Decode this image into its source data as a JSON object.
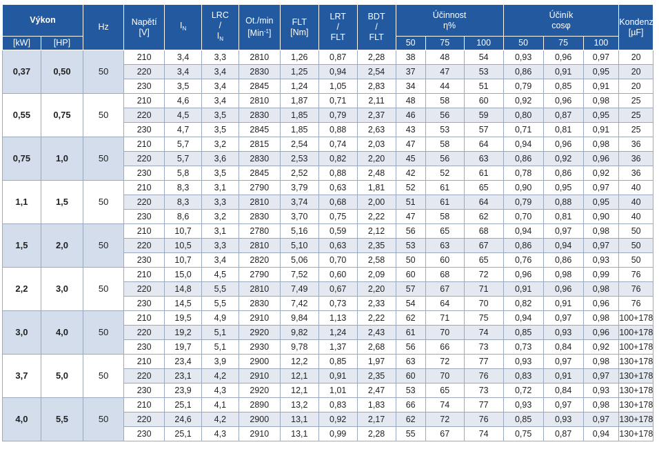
{
  "header": {
    "power": "Výkon",
    "kw": "[kW]",
    "hp": "[HP]",
    "hz": "Hz",
    "voltage": "Napětí",
    "voltage_unit": "[V]",
    "in_main": "I",
    "in_sub": "N",
    "lrc_top": "LRC",
    "lrc_slash": "/",
    "lrc_bot_main": "I",
    "lrc_bot_sub": "N",
    "rpm": "Ot./min",
    "rpm_unit_pre": "[Min",
    "rpm_unit_sup": "-1",
    "rpm_unit_post": "]",
    "flt": "FLT",
    "flt_unit": "[Nm]",
    "lrt_top": "LRT",
    "lrt_slash": "/",
    "lrt_bot": "FLT",
    "bdt_top": "BDT",
    "bdt_slash": "/",
    "bdt_bot": "FLT",
    "eff": "Účinnost",
    "eff_unit": "η%",
    "pf": "Účiník",
    "pf_unit": "cosφ",
    "cap": "Kondenzátor",
    "cap_unit": "[µF]",
    "load_50": "50",
    "load_75": "75",
    "load_100": "100"
  },
  "groups": [
    {
      "kw": "0,37",
      "hp": "0,50",
      "hz": "50",
      "rows": [
        [
          "210",
          "3,4",
          "3,3",
          "2810",
          "1,26",
          "0,87",
          "2,28",
          "38",
          "48",
          "54",
          "0,93",
          "0,96",
          "0,97",
          "20"
        ],
        [
          "220",
          "3,4",
          "3,4",
          "2830",
          "1,25",
          "0,94",
          "2,54",
          "37",
          "47",
          "53",
          "0,86",
          "0,91",
          "0,95",
          "20"
        ],
        [
          "230",
          "3,5",
          "3,4",
          "2845",
          "1,24",
          "1,05",
          "2,83",
          "34",
          "44",
          "51",
          "0,79",
          "0,85",
          "0,91",
          "20"
        ]
      ]
    },
    {
      "kw": "0,55",
      "hp": "0,75",
      "hz": "50",
      "rows": [
        [
          "210",
          "4,6",
          "3,4",
          "2810",
          "1,87",
          "0,71",
          "2,11",
          "48",
          "58",
          "60",
          "0,92",
          "0,96",
          "0,98",
          "25"
        ],
        [
          "220",
          "4,5",
          "3,5",
          "2830",
          "1,85",
          "0,79",
          "2,37",
          "46",
          "56",
          "59",
          "0,80",
          "0,87",
          "0,95",
          "25"
        ],
        [
          "230",
          "4,7",
          "3,5",
          "2845",
          "1,85",
          "0,88",
          "2,63",
          "43",
          "53",
          "57",
          "0,71",
          "0,81",
          "0,91",
          "25"
        ]
      ]
    },
    {
      "kw": "0,75",
      "hp": "1,0",
      "hz": "50",
      "rows": [
        [
          "210",
          "5,7",
          "3,2",
          "2815",
          "2,54",
          "0,74",
          "2,03",
          "47",
          "58",
          "64",
          "0,94",
          "0,96",
          "0,98",
          "36"
        ],
        [
          "220",
          "5,7",
          "3,6",
          "2830",
          "2,53",
          "0,82",
          "2,20",
          "45",
          "56",
          "63",
          "0,86",
          "0,92",
          "0,96",
          "36"
        ],
        [
          "230",
          "5,8",
          "3,5",
          "2845",
          "2,52",
          "0,88",
          "2,48",
          "42",
          "52",
          "61",
          "0,78",
          "0,86",
          "0,92",
          "36"
        ]
      ]
    },
    {
      "kw": "1,1",
      "hp": "1,5",
      "hz": "50",
      "rows": [
        [
          "210",
          "8,3",
          "3,1",
          "2790",
          "3,79",
          "0,63",
          "1,81",
          "52",
          "61",
          "65",
          "0,90",
          "0,95",
          "0,97",
          "40"
        ],
        [
          "220",
          "8,3",
          "3,3",
          "2810",
          "3,74",
          "0,68",
          "2,00",
          "51",
          "61",
          "64",
          "0,79",
          "0,88",
          "0,95",
          "40"
        ],
        [
          "230",
          "8,6",
          "3,2",
          "2830",
          "3,70",
          "0,75",
          "2,22",
          "47",
          "58",
          "62",
          "0,70",
          "0,81",
          "0,90",
          "40"
        ]
      ]
    },
    {
      "kw": "1,5",
      "hp": "2,0",
      "hz": "50",
      "rows": [
        [
          "210",
          "10,7",
          "3,1",
          "2780",
          "5,16",
          "0,59",
          "2,12",
          "56",
          "65",
          "68",
          "0,94",
          "0,97",
          "0,98",
          "50"
        ],
        [
          "220",
          "10,5",
          "3,3",
          "2810",
          "5,10",
          "0,63",
          "2,35",
          "53",
          "63",
          "67",
          "0,86",
          "0,94",
          "0,97",
          "50"
        ],
        [
          "230",
          "10,7",
          "3,4",
          "2820",
          "5,06",
          "0,70",
          "2,58",
          "50",
          "60",
          "65",
          "0,76",
          "0,86",
          "0,93",
          "50"
        ]
      ]
    },
    {
      "kw": "2,2",
      "hp": "3,0",
      "hz": "50",
      "rows": [
        [
          "210",
          "15,0",
          "4,5",
          "2790",
          "7,52",
          "0,60",
          "2,09",
          "60",
          "68",
          "72",
          "0,96",
          "0,98",
          "0,99",
          "76"
        ],
        [
          "220",
          "14,8",
          "5,5",
          "2810",
          "7,49",
          "0,67",
          "2,20",
          "57",
          "67",
          "71",
          "0,91",
          "0,96",
          "0,98",
          "76"
        ],
        [
          "230",
          "14,5",
          "5,5",
          "2830",
          "7,42",
          "0,73",
          "2,33",
          "54",
          "64",
          "70",
          "0,82",
          "0,91",
          "0,96",
          "76"
        ]
      ]
    },
    {
      "kw": "3,0",
      "hp": "4,0",
      "hz": "50",
      "rows": [
        [
          "210",
          "19,5",
          "4,9",
          "2910",
          "9,84",
          "1,13",
          "2,22",
          "62",
          "71",
          "75",
          "0,94",
          "0,97",
          "0,98",
          "100+178"
        ],
        [
          "220",
          "19,2",
          "5,1",
          "2920",
          "9,82",
          "1,24",
          "2,43",
          "61",
          "70",
          "74",
          "0,85",
          "0,93",
          "0,96",
          "100+178"
        ],
        [
          "230",
          "19,7",
          "5,1",
          "2930",
          "9,78",
          "1,37",
          "2,68",
          "56",
          "66",
          "73",
          "0,73",
          "0,84",
          "0,92",
          "100+178"
        ]
      ]
    },
    {
      "kw": "3,7",
      "hp": "5,0",
      "hz": "50",
      "rows": [
        [
          "210",
          "23,4",
          "3,9",
          "2900",
          "12,2",
          "0,85",
          "1,97",
          "63",
          "72",
          "77",
          "0,93",
          "0,97",
          "0,98",
          "130+178"
        ],
        [
          "220",
          "23,1",
          "4,2",
          "2910",
          "12,1",
          "0,91",
          "2,35",
          "60",
          "70",
          "76",
          "0,83",
          "0,91",
          "0,97",
          "130+178"
        ],
        [
          "230",
          "23,9",
          "4,3",
          "2920",
          "12,1",
          "1,01",
          "2,47",
          "53",
          "65",
          "73",
          "0,72",
          "0,84",
          "0,93",
          "130+178"
        ]
      ]
    },
    {
      "kw": "4,0",
      "hp": "5,5",
      "hz": "50",
      "rows": [
        [
          "210",
          "25,1",
          "4,1",
          "2890",
          "13,2",
          "0,83",
          "1,83",
          "66",
          "74",
          "77",
          "0,93",
          "0,97",
          "0,98",
          "130+178"
        ],
        [
          "220",
          "24,6",
          "4,2",
          "2900",
          "13,1",
          "0,92",
          "2,17",
          "62",
          "72",
          "76",
          "0,85",
          "0,93",
          "0,97",
          "130+178"
        ],
        [
          "230",
          "25,1",
          "4,3",
          "2910",
          "13,1",
          "0,99",
          "2,28",
          "55",
          "67",
          "74",
          "0,75",
          "0,87",
          "0,94",
          "130+178"
        ]
      ]
    }
  ]
}
